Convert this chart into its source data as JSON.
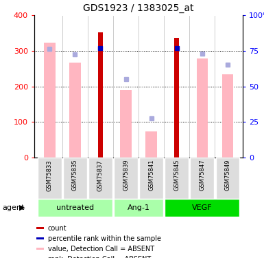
{
  "title": "GDS1923 / 1383025_at",
  "samples": [
    "GSM75833",
    "GSM75835",
    "GSM75837",
    "GSM75839",
    "GSM75841",
    "GSM75845",
    "GSM75847",
    "GSM75849"
  ],
  "red_bars": [
    null,
    null,
    352,
    null,
    null,
    337,
    null,
    null
  ],
  "pink_bars": [
    323,
    268,
    null,
    190,
    73,
    null,
    278,
    235
  ],
  "blue_squares": [
    null,
    null,
    308,
    null,
    null,
    308,
    null,
    null
  ],
  "lavender_squares": [
    null,
    290,
    null,
    220,
    110,
    null,
    292,
    262
  ],
  "blue_sq_sample1": 305,
  "ylim": [
    0,
    400
  ],
  "y2lim": [
    0,
    100
  ],
  "yticks": [
    0,
    100,
    200,
    300,
    400
  ],
  "ytick_labels": [
    "0",
    "100",
    "200",
    "300",
    "400"
  ],
  "y2ticks": [
    0,
    25,
    50,
    75,
    100
  ],
  "y2tick_labels": [
    "0",
    "25",
    "50",
    "75",
    "100%"
  ],
  "red_color": "#CC0000",
  "pink_color": "#FFB6C1",
  "blue_color": "#0000BB",
  "lavender_color": "#AAAADD",
  "group_light_green": "#AAFFAA",
  "group_dark_green": "#00DD00",
  "sample_bg": "#DDDDDD",
  "legend_items": [
    {
      "label": "count",
      "color": "#CC0000"
    },
    {
      "label": "percentile rank within the sample",
      "color": "#0000BB"
    },
    {
      "label": "value, Detection Call = ABSENT",
      "color": "#FFB6C1"
    },
    {
      "label": "rank, Detection Call = ABSENT",
      "color": "#AAAADD"
    }
  ],
  "groups": [
    {
      "label": "untreated",
      "start": 0,
      "end": 2,
      "light": true
    },
    {
      "label": "Ang-1",
      "start": 3,
      "end": 4,
      "light": true
    },
    {
      "label": "VEGF",
      "start": 5,
      "end": 7,
      "light": false
    }
  ]
}
